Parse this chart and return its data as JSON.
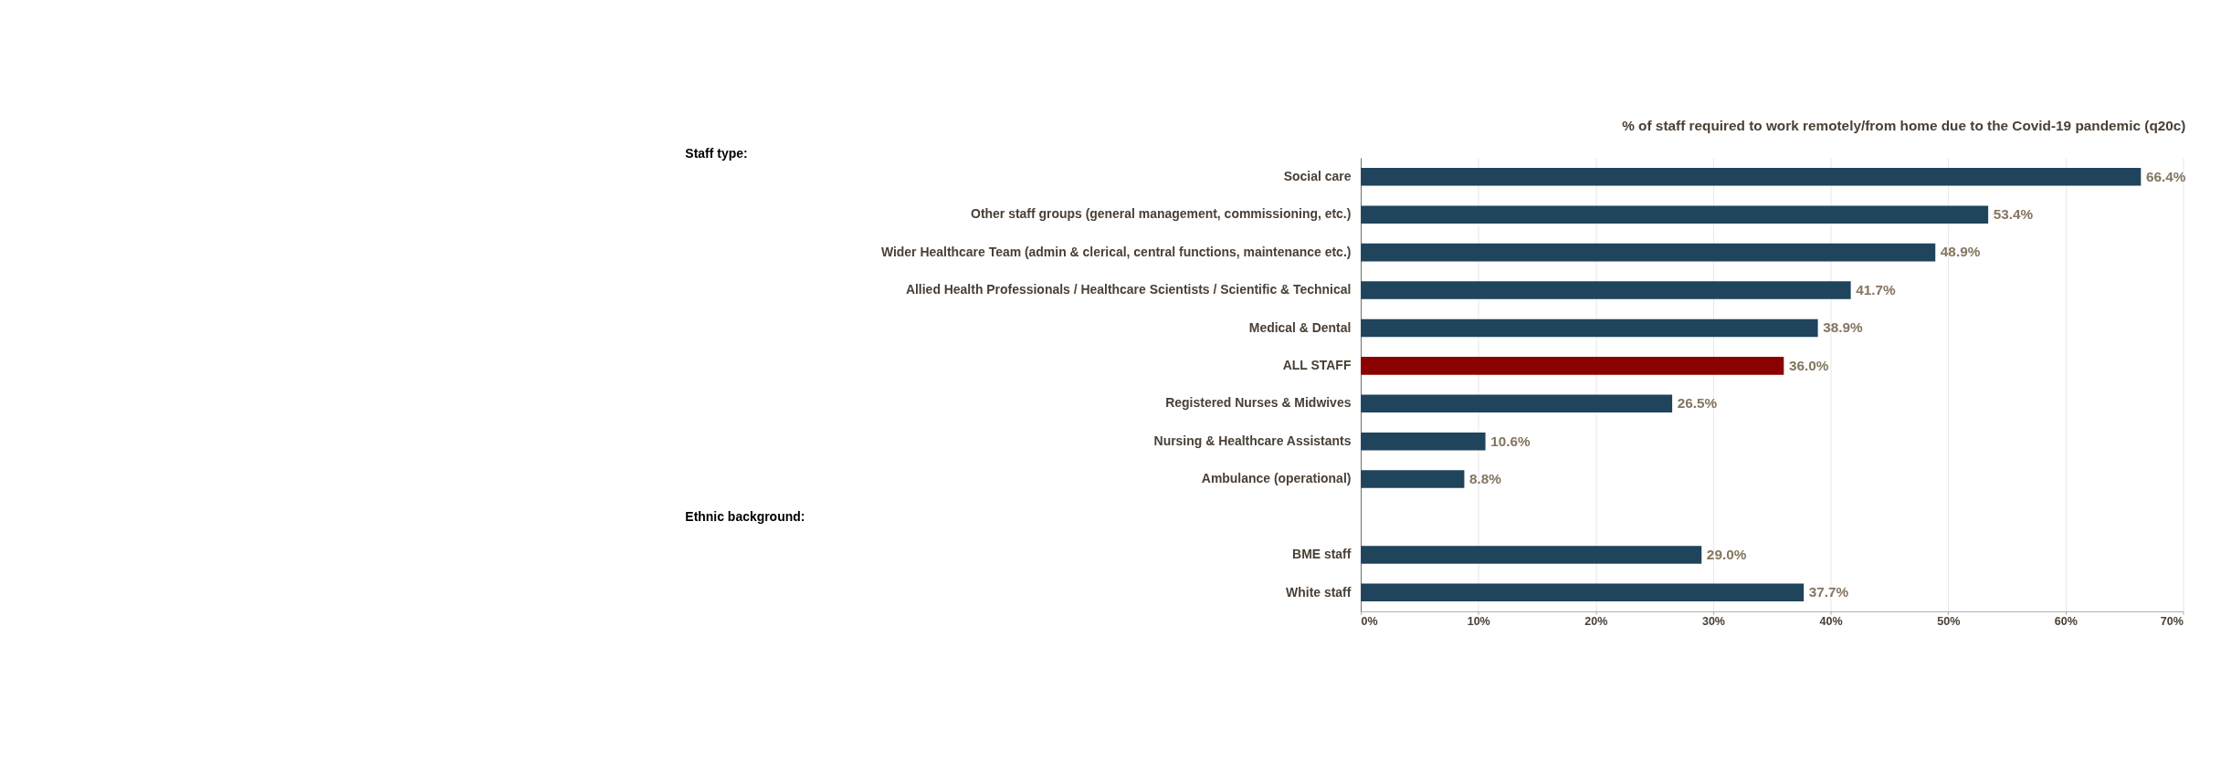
{
  "chart_data": {
    "type": "bar",
    "orientation": "horizontal",
    "title": "% of staff required to work remotely/from home due to the Covid-19 pandemic (q20c)",
    "categories": [
      "Social care",
      "Other staff groups (general management, commissioning, etc.)",
      "Wider Healthcare Team (admin & clerical, central functions, maintenance etc.)",
      "Allied Health Professionals / Healthcare Scientists / Scientific & Technical",
      "Medical & Dental",
      "ALL STAFF",
      "Registered Nurses & Midwives",
      "Nursing & Healthcare Assistants",
      "Ambulance (operational)",
      null,
      "BME staff",
      "White staff"
    ],
    "values": [
      66.4,
      53.4,
      48.9,
      41.7,
      38.9,
      36.0,
      26.5,
      10.6,
      8.8,
      null,
      29.0,
      37.7
    ],
    "colors": [
      "#1f445c",
      "#1f445c",
      "#1f445c",
      "#1f445c",
      "#1f445c",
      "#8b0000",
      "#1f445c",
      "#1f445c",
      "#1f445c",
      null,
      "#1f445c",
      "#1f445c"
    ],
    "value_labels": [
      "66.4%",
      "53.4%",
      "48.9%",
      "41.7%",
      "38.9%",
      "36.0%",
      "26.5%",
      "10.6%",
      "8.8%",
      null,
      "29.0%",
      "37.7%"
    ],
    "xlim": [
      0,
      70
    ],
    "xticks": [
      {
        "value": 0,
        "label": "0%"
      },
      {
        "value": 10,
        "label": "10%"
      },
      {
        "value": 20,
        "label": "20%"
      },
      {
        "value": 30,
        "label": "30%"
      },
      {
        "value": 40,
        "label": "40%"
      },
      {
        "value": 50,
        "label": "50%"
      },
      {
        "value": 60,
        "label": "60%"
      },
      {
        "value": 70,
        "label": "70%"
      }
    ],
    "grid": "x",
    "annotations": [
      "Staff type:",
      "Ethnic background:"
    ]
  }
}
